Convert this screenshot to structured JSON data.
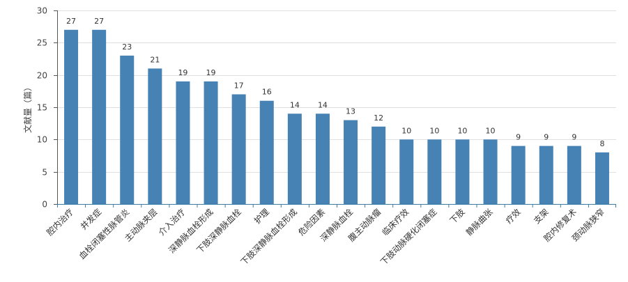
{
  "chart_data": {
    "type": "bar",
    "ylabel": "文献量（篇）",
    "ylim": [
      0,
      30
    ],
    "yticks": [
      0,
      5,
      10,
      15,
      20,
      25,
      30
    ],
    "grid": true,
    "categories": [
      "腔内治疗",
      "并发症",
      "血栓闭塞性脉管炎",
      "主动脉夹层",
      "介入治疗",
      "深静脉血栓形成",
      "下肢深静脉血栓",
      "护理",
      "下肢深静脉血栓形成",
      "危险因素",
      "深静脉血栓",
      "腹主动脉瘤",
      "临床疗效",
      "下肢动脉硬化闭塞症",
      "下肢",
      "静脉曲张",
      "疗效",
      "支架",
      "腔内修复术",
      "颈动脉狭窄"
    ],
    "values": [
      27,
      27,
      23,
      21,
      19,
      19,
      17,
      16,
      14,
      14,
      13,
      12,
      10,
      10,
      10,
      10,
      9,
      9,
      9,
      8
    ],
    "bar_color": "#4682b4"
  }
}
